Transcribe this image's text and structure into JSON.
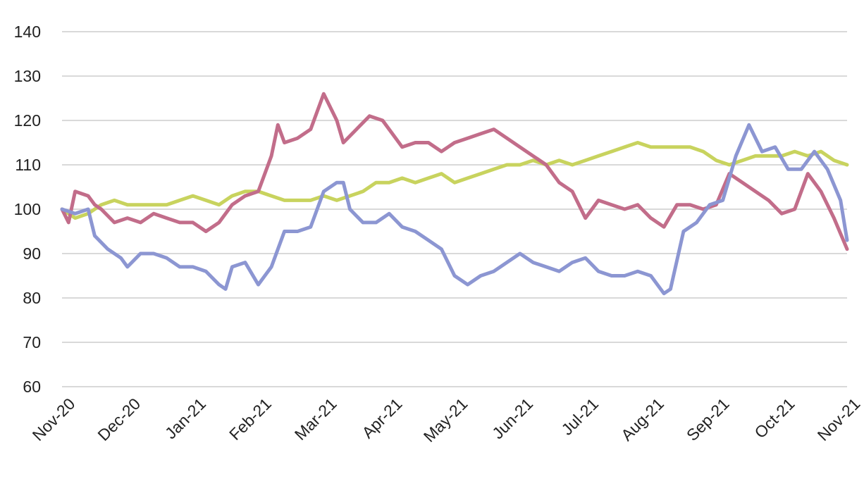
{
  "chart_data": {
    "type": "line",
    "title": "",
    "xlabel": "",
    "ylabel": "",
    "ylim": [
      60,
      140
    ],
    "y_ticks": [
      "60",
      "70",
      "80",
      "90",
      "100",
      "110",
      "120",
      "130",
      "140"
    ],
    "x_ticks": [
      "Nov-20",
      "Dec-20",
      "Jan-21",
      "Feb-21",
      "Mar-21",
      "Apr-21",
      "May-21",
      "Jun-21",
      "Jul-21",
      "Aug-21",
      "Sep-21",
      "Oct-21",
      "Nov-21"
    ],
    "grid": "horizontal",
    "legend": "none",
    "series": [
      {
        "color": "#c8d35e",
        "points": [
          [
            0,
            100
          ],
          [
            0.2,
            98
          ],
          [
            0.4,
            99
          ],
          [
            0.6,
            101
          ],
          [
            0.8,
            102
          ],
          [
            1.0,
            101
          ],
          [
            1.2,
            101
          ],
          [
            1.4,
            101
          ],
          [
            1.6,
            101
          ],
          [
            1.8,
            102
          ],
          [
            2.0,
            103
          ],
          [
            2.2,
            102
          ],
          [
            2.4,
            101
          ],
          [
            2.6,
            103
          ],
          [
            2.8,
            104
          ],
          [
            3.0,
            104
          ],
          [
            3.2,
            103
          ],
          [
            3.4,
            102
          ],
          [
            3.6,
            102
          ],
          [
            3.8,
            102
          ],
          [
            4.0,
            103
          ],
          [
            4.2,
            102
          ],
          [
            4.4,
            103
          ],
          [
            4.6,
            104
          ],
          [
            4.8,
            106
          ],
          [
            5.0,
            106
          ],
          [
            5.2,
            107
          ],
          [
            5.4,
            106
          ],
          [
            5.6,
            107
          ],
          [
            5.8,
            108
          ],
          [
            6.0,
            106
          ],
          [
            6.2,
            107
          ],
          [
            6.4,
            108
          ],
          [
            6.6,
            109
          ],
          [
            6.8,
            110
          ],
          [
            7.0,
            110
          ],
          [
            7.2,
            111
          ],
          [
            7.4,
            110
          ],
          [
            7.6,
            111
          ],
          [
            7.8,
            110
          ],
          [
            8.0,
            111
          ],
          [
            8.2,
            112
          ],
          [
            8.4,
            113
          ],
          [
            8.6,
            114
          ],
          [
            8.8,
            115
          ],
          [
            9.0,
            114
          ],
          [
            9.2,
            114
          ],
          [
            9.4,
            114
          ],
          [
            9.6,
            114
          ],
          [
            9.8,
            113
          ],
          [
            10.0,
            111
          ],
          [
            10.2,
            110
          ],
          [
            10.4,
            111
          ],
          [
            10.6,
            112
          ],
          [
            10.8,
            112
          ],
          [
            11.0,
            112
          ],
          [
            11.2,
            113
          ],
          [
            11.4,
            112
          ],
          [
            11.6,
            113
          ],
          [
            11.8,
            111
          ],
          [
            12.0,
            110
          ]
        ]
      },
      {
        "color": "#c26d8a",
        "points": [
          [
            0,
            100
          ],
          [
            0.1,
            97
          ],
          [
            0.2,
            104
          ],
          [
            0.4,
            103
          ],
          [
            0.5,
            101
          ],
          [
            0.6,
            100
          ],
          [
            0.8,
            97
          ],
          [
            1.0,
            98
          ],
          [
            1.2,
            97
          ],
          [
            1.4,
            99
          ],
          [
            1.6,
            98
          ],
          [
            1.8,
            97
          ],
          [
            2.0,
            97
          ],
          [
            2.2,
            95
          ],
          [
            2.4,
            97
          ],
          [
            2.6,
            101
          ],
          [
            2.8,
            103
          ],
          [
            3.0,
            104
          ],
          [
            3.2,
            112
          ],
          [
            3.3,
            119
          ],
          [
            3.4,
            115
          ],
          [
            3.6,
            116
          ],
          [
            3.8,
            118
          ],
          [
            4.0,
            126
          ],
          [
            4.2,
            120
          ],
          [
            4.3,
            115
          ],
          [
            4.5,
            118
          ],
          [
            4.7,
            121
          ],
          [
            4.9,
            120
          ],
          [
            5.0,
            118
          ],
          [
            5.2,
            114
          ],
          [
            5.4,
            115
          ],
          [
            5.6,
            115
          ],
          [
            5.8,
            113
          ],
          [
            6.0,
            115
          ],
          [
            6.2,
            116
          ],
          [
            6.4,
            117
          ],
          [
            6.6,
            118
          ],
          [
            6.8,
            116
          ],
          [
            7.0,
            114
          ],
          [
            7.2,
            112
          ],
          [
            7.4,
            110
          ],
          [
            7.6,
            106
          ],
          [
            7.8,
            104
          ],
          [
            8.0,
            98
          ],
          [
            8.2,
            102
          ],
          [
            8.4,
            101
          ],
          [
            8.6,
            100
          ],
          [
            8.8,
            101
          ],
          [
            9.0,
            98
          ],
          [
            9.2,
            96
          ],
          [
            9.4,
            101
          ],
          [
            9.6,
            101
          ],
          [
            9.8,
            100
          ],
          [
            10.0,
            101
          ],
          [
            10.2,
            108
          ],
          [
            10.4,
            106
          ],
          [
            10.6,
            104
          ],
          [
            10.8,
            102
          ],
          [
            11.0,
            99
          ],
          [
            11.2,
            100
          ],
          [
            11.4,
            108
          ],
          [
            11.6,
            104
          ],
          [
            11.8,
            98
          ],
          [
            12.0,
            91
          ]
        ]
      },
      {
        "color": "#8c96d2",
        "points": [
          [
            0,
            100
          ],
          [
            0.2,
            99
          ],
          [
            0.4,
            100
          ],
          [
            0.5,
            94
          ],
          [
            0.7,
            91
          ],
          [
            0.9,
            89
          ],
          [
            1.0,
            87
          ],
          [
            1.2,
            90
          ],
          [
            1.4,
            90
          ],
          [
            1.6,
            89
          ],
          [
            1.8,
            87
          ],
          [
            2.0,
            87
          ],
          [
            2.2,
            86
          ],
          [
            2.4,
            83
          ],
          [
            2.5,
            82
          ],
          [
            2.6,
            87
          ],
          [
            2.8,
            88
          ],
          [
            3.0,
            83
          ],
          [
            3.2,
            87
          ],
          [
            3.4,
            95
          ],
          [
            3.6,
            95
          ],
          [
            3.8,
            96
          ],
          [
            4.0,
            104
          ],
          [
            4.2,
            106
          ],
          [
            4.3,
            106
          ],
          [
            4.4,
            100
          ],
          [
            4.6,
            97
          ],
          [
            4.8,
            97
          ],
          [
            5.0,
            99
          ],
          [
            5.2,
            96
          ],
          [
            5.4,
            95
          ],
          [
            5.6,
            93
          ],
          [
            5.8,
            91
          ],
          [
            6.0,
            85
          ],
          [
            6.2,
            83
          ],
          [
            6.4,
            85
          ],
          [
            6.6,
            86
          ],
          [
            6.8,
            88
          ],
          [
            7.0,
            90
          ],
          [
            7.2,
            88
          ],
          [
            7.4,
            87
          ],
          [
            7.6,
            86
          ],
          [
            7.8,
            88
          ],
          [
            8.0,
            89
          ],
          [
            8.2,
            86
          ],
          [
            8.4,
            85
          ],
          [
            8.6,
            85
          ],
          [
            8.8,
            86
          ],
          [
            9.0,
            85
          ],
          [
            9.2,
            81
          ],
          [
            9.3,
            82
          ],
          [
            9.5,
            95
          ],
          [
            9.7,
            97
          ],
          [
            9.9,
            101
          ],
          [
            10.1,
            102
          ],
          [
            10.3,
            112
          ],
          [
            10.5,
            119
          ],
          [
            10.7,
            113
          ],
          [
            10.9,
            114
          ],
          [
            11.1,
            109
          ],
          [
            11.3,
            109
          ],
          [
            11.5,
            113
          ],
          [
            11.7,
            109
          ],
          [
            11.9,
            102
          ],
          [
            12.0,
            93
          ]
        ]
      }
    ]
  }
}
